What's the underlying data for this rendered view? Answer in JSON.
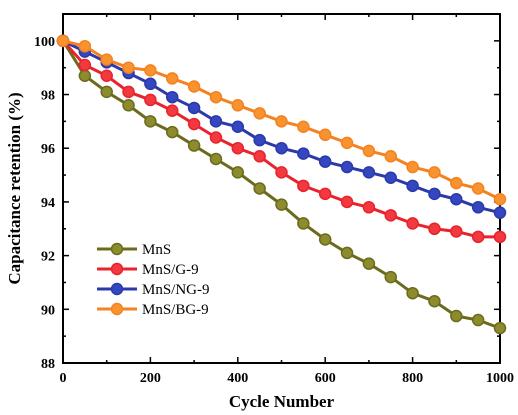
{
  "chart_data": {
    "type": "line",
    "xlabel": "Cycle Number",
    "ylabel": "Capacitance retention (%)",
    "xlim": [
      0,
      1000
    ],
    "ylim": [
      88,
      101
    ],
    "xticks": [
      0,
      200,
      400,
      600,
      800,
      1000
    ],
    "yticks": [
      88,
      90,
      92,
      94,
      96,
      98,
      100
    ],
    "grid": false,
    "legend_position": "bottom-left",
    "x": [
      0,
      50,
      100,
      150,
      200,
      250,
      300,
      350,
      400,
      450,
      500,
      550,
      600,
      650,
      700,
      750,
      800,
      850,
      900,
      950,
      1000
    ],
    "series": [
      {
        "name": "MnS",
        "color": "#6b6b1e",
        "fill": "#8c8c2e",
        "values": [
          100,
          98.7,
          98.1,
          97.6,
          97.0,
          96.6,
          96.1,
          95.6,
          95.1,
          94.5,
          93.9,
          93.2,
          92.6,
          92.1,
          91.7,
          91.2,
          90.6,
          90.3,
          89.75,
          89.6,
          89.3
        ]
      },
      {
        "name": "MnS/G-9",
        "color": "#e8232c",
        "fill": "#f2393f",
        "values": [
          100,
          99.1,
          98.7,
          98.1,
          97.8,
          97.4,
          96.9,
          96.4,
          96.0,
          95.7,
          95.1,
          94.6,
          94.3,
          94.0,
          93.8,
          93.5,
          93.2,
          93.0,
          92.9,
          92.7,
          92.7
        ]
      },
      {
        "name": "MnS/NG-9",
        "color": "#2b3aa8",
        "fill": "#3447c0",
        "values": [
          100,
          99.6,
          99.2,
          98.8,
          98.4,
          97.9,
          97.5,
          97.0,
          96.8,
          96.3,
          96.0,
          95.8,
          95.5,
          95.3,
          95.1,
          94.9,
          94.6,
          94.3,
          94.1,
          93.8,
          93.6
        ]
      },
      {
        "name": "MnS/BG-9",
        "color": "#f58220",
        "fill": "#f7942f",
        "values": [
          100,
          99.8,
          99.3,
          99.0,
          98.9,
          98.6,
          98.3,
          97.9,
          97.6,
          97.3,
          97.0,
          96.8,
          96.5,
          96.2,
          95.9,
          95.7,
          95.3,
          95.1,
          94.7,
          94.5,
          94.1
        ]
      }
    ]
  }
}
